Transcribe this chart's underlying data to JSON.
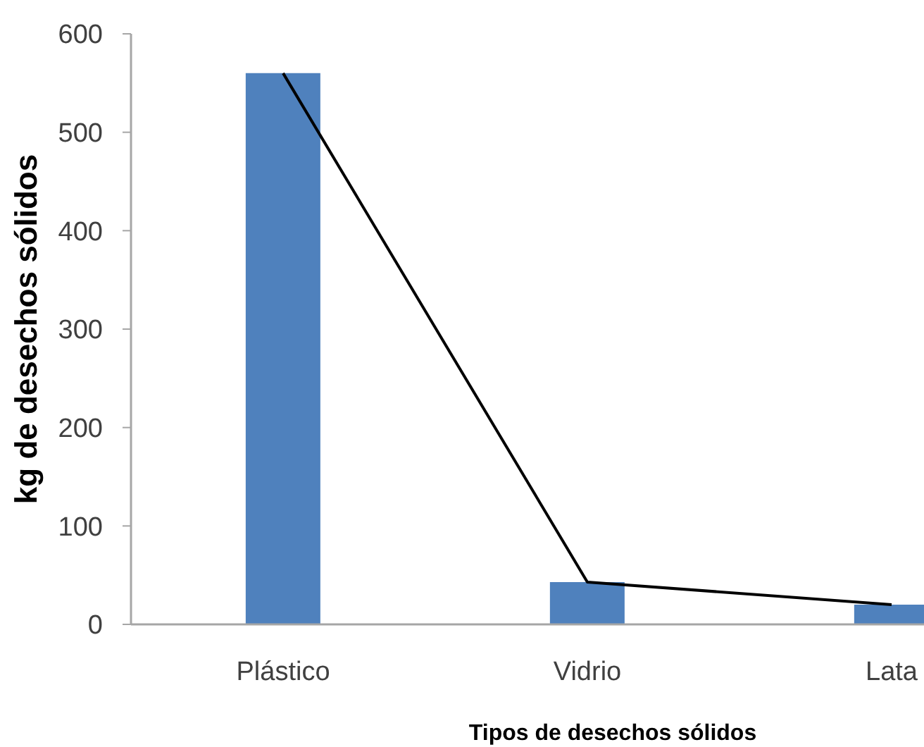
{
  "chart_data": {
    "type": "bar",
    "xlabel": "Tipos de desechos sólidos",
    "ylabel": "kg de desechos sólidos",
    "categories": [
      "Plástico",
      "Vidrio",
      "Lata"
    ],
    "series": [
      {
        "color": "#4f81bd",
        "values": [
          560,
          43,
          20
        ]
      },
      {
        "type": "line",
        "color": "#000000",
        "values": [
          560,
          43,
          20
        ]
      }
    ],
    "ylim": [
      0,
      600
    ],
    "yticks": [
      0,
      100,
      200,
      300,
      400,
      500,
      600
    ],
    "grid": false,
    "legend": false,
    "marker": "none"
  }
}
